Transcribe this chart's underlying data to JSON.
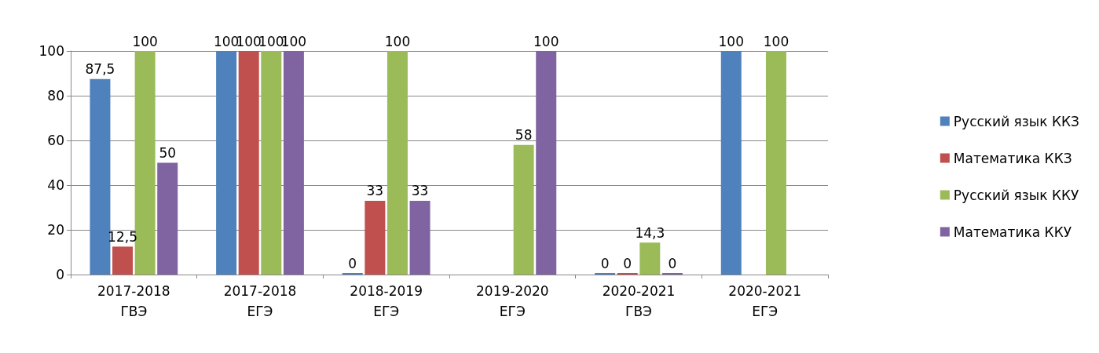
{
  "chart_data": {
    "type": "bar",
    "categories": [
      "2017-2018\nГВЭ",
      "2017-2018\nЕГЭ",
      "2018-2019\nЕГЭ",
      "2019-2020\nЕГЭ",
      "2020-2021\nГВЭ",
      "2020-2021\nЕГЭ"
    ],
    "series": [
      {
        "name": "Русский язык ККЗ",
        "color": "#4f81bd",
        "values": [
          87.5,
          100,
          0,
          null,
          0,
          100
        ],
        "value_labels": [
          "87,5",
          "100",
          "0",
          null,
          "0",
          "100"
        ]
      },
      {
        "name": "Математика ККЗ",
        "color": "#c0504d",
        "values": [
          12.5,
          100,
          33,
          null,
          0,
          null
        ],
        "value_labels": [
          "12,5",
          "100",
          "33",
          null,
          "0",
          null
        ]
      },
      {
        "name": "Русский язык ККУ",
        "color": "#9bbb59",
        "values": [
          100,
          100,
          100,
          58,
          14.3,
          100
        ],
        "value_labels": [
          "100",
          "100",
          "100",
          "58",
          "14,3",
          "100"
        ]
      },
      {
        "name": "Математика ККУ",
        "color": "#8064a2",
        "values": [
          50,
          100,
          33,
          100,
          0,
          null
        ],
        "value_labels": [
          "50",
          "100",
          "33",
          "100",
          "0",
          null
        ]
      }
    ],
    "ylim": [
      0,
      100
    ],
    "yticks": [
      0,
      20,
      40,
      60,
      80,
      100
    ],
    "grid": "y",
    "legend": "right"
  }
}
